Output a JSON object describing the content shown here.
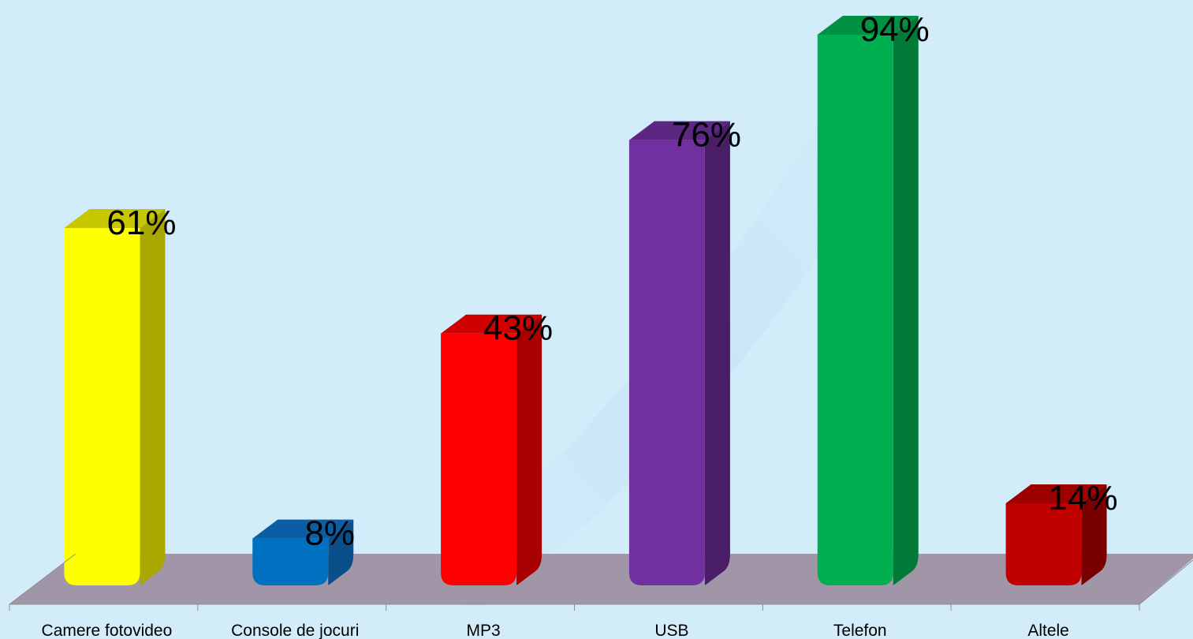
{
  "chart_data": {
    "type": "bar",
    "categories": [
      "Camere fotovideo",
      "Console de jocuri",
      "MP3",
      "USB",
      "Telefon",
      "Altele"
    ],
    "values": [
      61,
      8,
      43,
      76,
      94,
      14
    ],
    "value_labels": [
      "61%",
      "8%",
      "43%",
      "76%",
      "94%",
      "14%"
    ],
    "ylim": [
      0,
      100
    ],
    "grid": false,
    "legend": "none",
    "title": "",
    "xlabel": "",
    "ylabel": "",
    "colors": [
      {
        "front": "#ffff00",
        "side": "#a8a800",
        "top": "#c7c700"
      },
      {
        "front": "#0070c0",
        "side": "#0a4f8a",
        "top": "#0b5ea3"
      },
      {
        "front": "#ff0000",
        "side": "#a80000",
        "top": "#cf0000"
      },
      {
        "front": "#7030a0",
        "side": "#4a1e66",
        "top": "#5c2683"
      },
      {
        "front": "#00b050",
        "side": "#007a36",
        "top": "#009242"
      },
      {
        "front": "#c00000",
        "side": "#7a0000",
        "top": "#9c0000"
      }
    ],
    "floor_color": "#a096a8",
    "background_color": "#d2ecf9"
  }
}
